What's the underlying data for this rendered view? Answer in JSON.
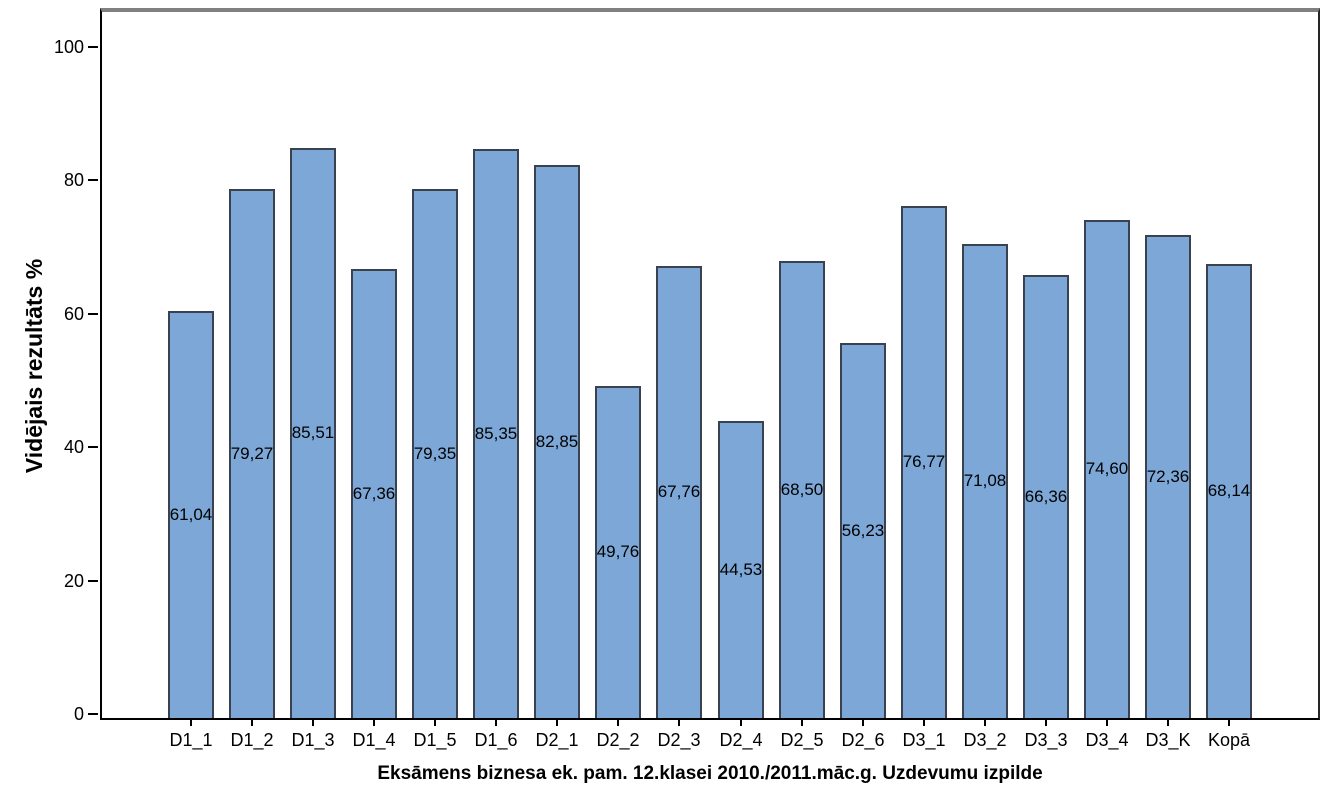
{
  "chart_data": {
    "type": "bar",
    "title": "",
    "xlabel": "Eksāmens biznesa ek. pam. 12.klasei 2010./2011.māc.g. Uzdevumu izpilde",
    "ylabel": "Vidējais rezultāts %",
    "categories": [
      "D1_1",
      "D1_2",
      "D1_3",
      "D1_4",
      "D1_5",
      "D1_6",
      "D2_1",
      "D2_2",
      "D2_3",
      "D2_4",
      "D2_5",
      "D2_6",
      "D3_1",
      "D3_2",
      "D3_3",
      "D3_4",
      "D3_K",
      "Kopā"
    ],
    "values": [
      61.04,
      79.27,
      85.51,
      67.36,
      79.35,
      85.35,
      82.85,
      49.76,
      67.76,
      44.53,
      68.5,
      56.23,
      76.77,
      71.08,
      66.36,
      74.6,
      72.36,
      68.14
    ],
    "value_labels": [
      "61,04",
      "79,27",
      "85,51",
      "67,36",
      "79,35",
      "85,35",
      "82,85",
      "49,76",
      "67,76",
      "44,53",
      "68,50",
      "56,23",
      "76,77",
      "71,08",
      "66,36",
      "74,60",
      "72,36",
      "68,14"
    ],
    "value_label_position": "inside-middle",
    "yticks": [
      0,
      20,
      40,
      60,
      80,
      100
    ],
    "ylim": [
      0,
      106.5
    ],
    "grid": false,
    "legend": null,
    "colors": {
      "bar_fill": "#7CA7D6",
      "bar_border": "#39424E",
      "axis": "#000000",
      "frame_top": "#808080",
      "text": "#000000",
      "background": "#FFFFFF"
    }
  }
}
